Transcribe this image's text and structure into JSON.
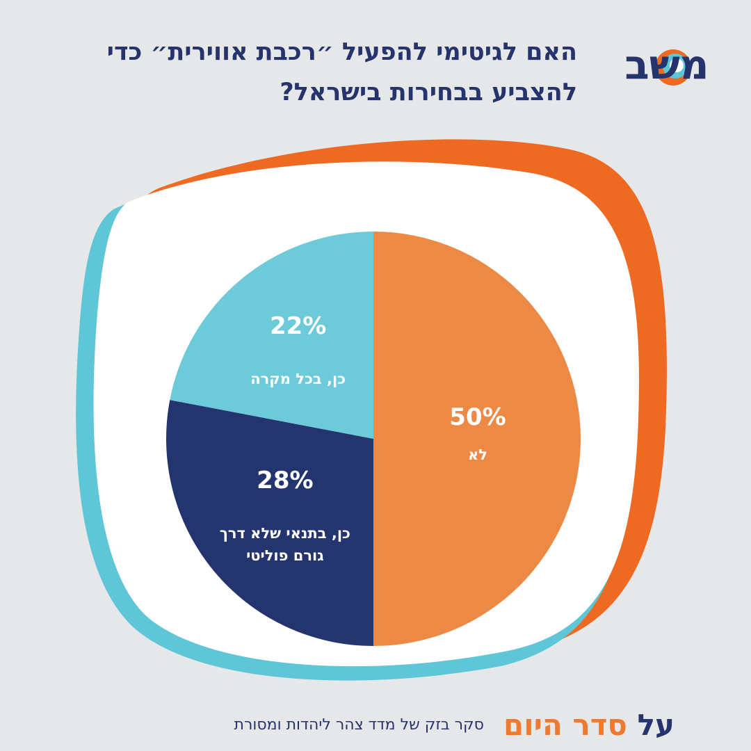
{
  "title": {
    "line1": "האם לגיטימי להפעיל ״רכבת אווירית״ כדי",
    "line2": "להצביע בבחירות בישראל?"
  },
  "logo": {
    "text": "משב",
    "icon": "swirl-logo-icon"
  },
  "chart_data": {
    "type": "pie",
    "title": "האם לגיטימי להפעיל ״רכבת אווירית״ כדי להצביע בבחירות בישראל?",
    "slices": [
      {
        "label": "לא",
        "value": 50,
        "display": "50%",
        "color": "#ec8944"
      },
      {
        "label": "כן, בתנאי שלא דרך גורם פוליטי",
        "label_lines": [
          "כן, בתנאי שלא דרך",
          "גורם פוליטי"
        ],
        "value": 28,
        "display": "28%",
        "color": "#24346e"
      },
      {
        "label": "כן, בכל מקרה",
        "value": 22,
        "display": "22%",
        "color": "#6ccad9"
      }
    ]
  },
  "footer": {
    "brand_part1": "על",
    "brand_part2": "סדר היום",
    "source": "סקר בזק של מדד צהר ליהדות ומסורת"
  },
  "colors": {
    "background": "#e6e7e8",
    "navy": "#26346e",
    "orange_frame": "#ee6a23",
    "cyan_frame": "#5ec6d6"
  }
}
